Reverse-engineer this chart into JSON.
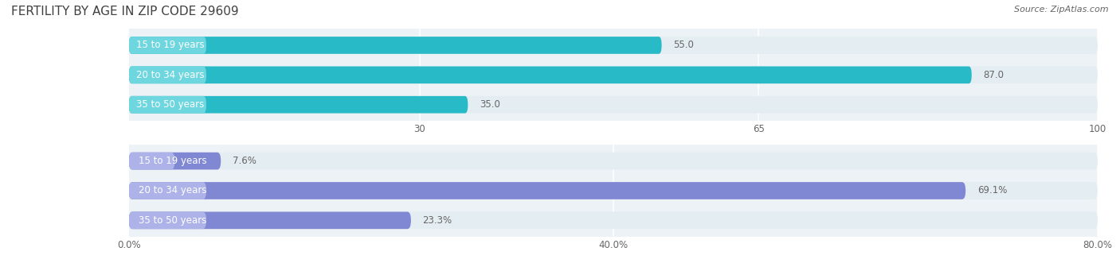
{
  "title": "FERTILITY BY AGE IN ZIP CODE 29609",
  "source": "Source: ZipAtlas.com",
  "top_chart": {
    "categories": [
      "15 to 19 years",
      "20 to 34 years",
      "35 to 50 years"
    ],
    "values": [
      55.0,
      87.0,
      35.0
    ],
    "xlim": [
      0,
      100
    ],
    "xticks": [
      30.0,
      65.0,
      100.0
    ],
    "bar_color": "#29bac8",
    "bar_color_light": "#6ed6df",
    "bar_bg_color": "#e4edf2"
  },
  "bottom_chart": {
    "categories": [
      "15 to 19 years",
      "20 to 34 years",
      "35 to 50 years"
    ],
    "values": [
      7.6,
      69.1,
      23.3
    ],
    "xlim": [
      0,
      80
    ],
    "xticks": [
      0.0,
      40.0,
      80.0
    ],
    "xtick_labels": [
      "0.0%",
      "40.0%",
      "80.0%"
    ],
    "bar_color": "#8088d4",
    "bar_color_light": "#adb3e8",
    "bar_bg_color": "#e4edf2"
  },
  "label_fontsize": 8.5,
  "value_fontsize": 8.5,
  "title_fontsize": 11,
  "source_fontsize": 8,
  "bg_color": "#ffffff",
  "bar_height": 0.58,
  "label_color": "#666666",
  "title_color": "#404040"
}
